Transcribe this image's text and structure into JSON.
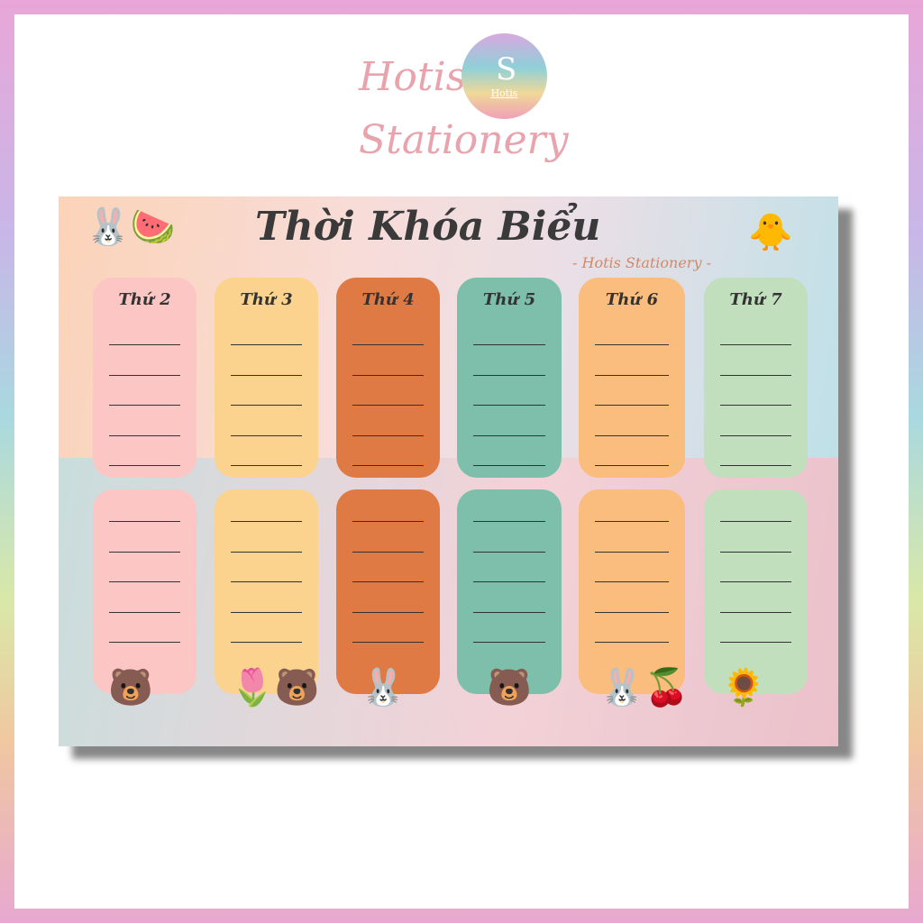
{
  "brand": {
    "line1": "Hotis",
    "line2": "Stationery",
    "logo_text": "Hotis"
  },
  "sheet": {
    "title": "Thời Khóa Biểu",
    "subtitle": "- Hotis Stationery -",
    "days": [
      {
        "label": "Thứ 2",
        "color": "#fbc6c4"
      },
      {
        "label": "Thứ 3",
        "color": "#fbd38e"
      },
      {
        "label": "Thứ 4",
        "color": "#e07a45"
      },
      {
        "label": "Thứ 5",
        "color": "#7dbfaa"
      },
      {
        "label": "Thứ 6",
        "color": "#fbbd7e"
      },
      {
        "label": "Thứ 7",
        "color": "#c2dfbd"
      }
    ],
    "decorations": [
      "bunny-watermelon-sticker",
      "duck-sticker",
      "bear-umbrella",
      "bear-flower",
      "bunny-sitting",
      "bear-icecream",
      "bunny-cherries",
      "bear-sunflower"
    ]
  }
}
